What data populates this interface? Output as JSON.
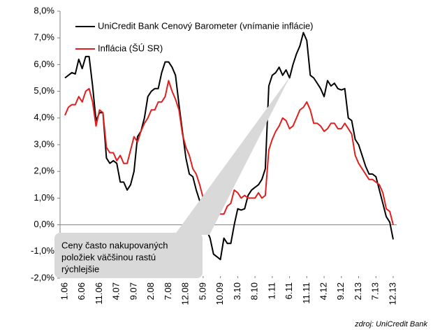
{
  "chart_data": {
    "type": "line",
    "categories": [
      "1.06",
      null,
      null,
      null,
      null,
      "6.06",
      null,
      null,
      null,
      null,
      "11.06",
      null,
      null,
      null,
      null,
      "4.07",
      null,
      null,
      null,
      null,
      "9.07",
      null,
      null,
      null,
      null,
      "2.08",
      null,
      null,
      null,
      null,
      "7.08",
      null,
      null,
      null,
      null,
      "12.08",
      null,
      null,
      null,
      null,
      "5.09",
      null,
      null,
      null,
      null,
      "10.09",
      null,
      null,
      null,
      null,
      "3.10",
      null,
      null,
      null,
      null,
      "8.10",
      null,
      null,
      null,
      null,
      "1.11",
      null,
      null,
      null,
      null,
      "6.11",
      null,
      null,
      null,
      null,
      "11.11",
      null,
      null,
      null,
      null,
      "4.12",
      null,
      null,
      null,
      null,
      "9.12",
      null,
      null,
      null,
      null,
      "2.13",
      null,
      null,
      null,
      null,
      "7.13",
      null,
      null,
      null,
      null,
      "12.13"
    ],
    "series": [
      {
        "name": "UniCredit Bank Cenový Barometer (vnímanie inflácie)",
        "color": "#000000",
        "values": [
          5.5,
          5.6,
          5.7,
          5.65,
          6.2,
          5.85,
          6.3,
          6.3,
          5.2,
          3.9,
          4.2,
          4.2,
          2.5,
          2.3,
          2.4,
          2.3,
          1.6,
          1.6,
          1.3,
          1.5,
          2.0,
          3.3,
          3.5,
          4.0,
          4.8,
          5.0,
          5.1,
          5.1,
          5.7,
          6.1,
          6.1,
          5.9,
          5.6,
          4.5,
          3.5,
          2.5,
          1.9,
          1.8,
          1.3,
          0.9,
          0.5,
          -0.2,
          -0.5,
          -1.1,
          -1.2,
          -1.3,
          -0.5,
          -0.7,
          -0.7,
          0.0,
          0.6,
          0.55,
          0.6,
          1.1,
          1.3,
          1.4,
          1.5,
          1.7,
          2.1,
          5.2,
          5.6,
          5.7,
          5.9,
          5.6,
          5.8,
          5.5,
          6.0,
          6.4,
          6.7,
          7.2,
          6.9,
          5.6,
          5.5,
          5.3,
          5.1,
          4.8,
          5.4,
          5.2,
          5.3,
          5.1,
          5.05,
          5.1,
          4.0,
          3.9,
          3.2,
          3.0,
          2.6,
          2.2,
          1.9,
          1.9,
          1.8,
          1.3,
          0.8,
          0.3,
          0.1,
          -0.55
        ]
      },
      {
        "name": "Inflácia (ŠÚ SR)",
        "color": "#e02020",
        "values": [
          4.1,
          4.4,
          4.5,
          4.5,
          4.8,
          4.6,
          5.0,
          5.1,
          4.6,
          3.7,
          4.3,
          4.2,
          2.9,
          2.7,
          2.7,
          2.4,
          2.6,
          2.3,
          2.3,
          2.8,
          3.3,
          3.1,
          3.5,
          3.8,
          4.0,
          4.3,
          4.3,
          4.6,
          4.6,
          4.8,
          5.4,
          5.0,
          4.7,
          4.3,
          3.4,
          2.9,
          2.6,
          2.1,
          1.9,
          1.5,
          1.0,
          0.6,
          0.4,
          0.4,
          0.5,
          0.4,
          0.4,
          0.7,
          0.8,
          1.3,
          1.2,
          1.0,
          1.1,
          1.0,
          1.0,
          1.0,
          1.2,
          1.0,
          1.1,
          2.8,
          3.2,
          3.5,
          3.7,
          4.0,
          3.9,
          3.6,
          3.7,
          4.0,
          4.3,
          4.4,
          4.6,
          4.3,
          3.8,
          3.8,
          3.7,
          3.5,
          3.6,
          3.8,
          3.8,
          3.6,
          3.6,
          3.8,
          3.6,
          3.4,
          2.6,
          2.3,
          2.1,
          1.9,
          1.7,
          1.7,
          1.6,
          1.5,
          1.2,
          0.6,
          0.5,
          0.0
        ]
      }
    ],
    "ylim": [
      -2,
      8
    ],
    "yticks": [
      {
        "value": -2,
        "label": "-2,0%"
      },
      {
        "value": -1,
        "label": "-1,0%"
      },
      {
        "value": 0,
        "label": "0,0%"
      },
      {
        "value": 1,
        "label": "1,0%"
      },
      {
        "value": 2,
        "label": "2,0%"
      },
      {
        "value": 3,
        "label": "3,0%"
      },
      {
        "value": 4,
        "label": "4,0%"
      },
      {
        "value": 5,
        "label": "5,0%"
      },
      {
        "value": 6,
        "label": "6,0%"
      },
      {
        "value": 7,
        "label": "7,0%"
      },
      {
        "value": 8,
        "label": "8,0%"
      }
    ],
    "annotation": [
      "Ceny často nakupovaných",
      "položiek väčšinou rastú",
      "rýchlejšie"
    ],
    "source": "zdroj: UniCredit Bank"
  }
}
